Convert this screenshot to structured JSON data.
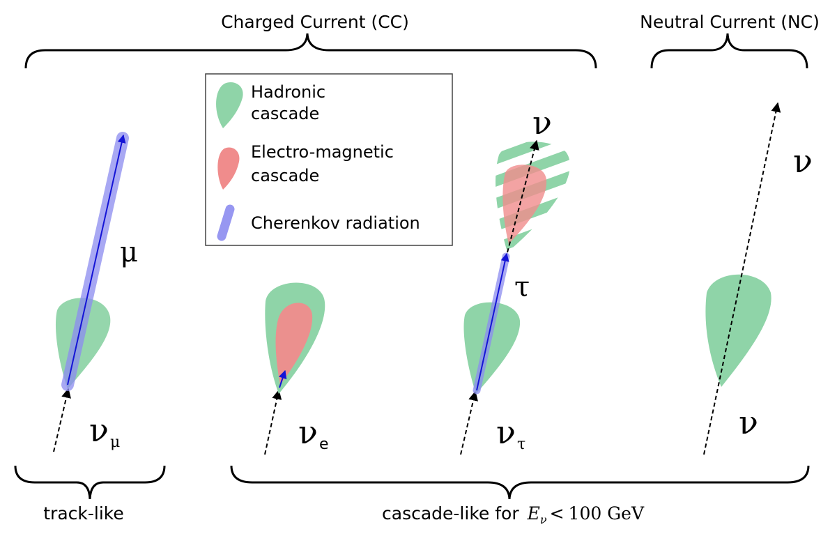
{
  "headers": {
    "cc": "Charged Current (CC)",
    "nc": "Neutral Current (NC)"
  },
  "legend": {
    "hadronic_line1": "Hadronic",
    "hadronic_line2": "cascade",
    "em_line1": "Electro-magnetic",
    "em_line2": "cascade",
    "cherenkov": "Cherenkov radiation"
  },
  "particles": {
    "nu_mu_base": "ν",
    "nu_mu_sub": "μ",
    "mu": "μ",
    "nu_e_base": "ν",
    "nu_e_sub": "e",
    "nu_tau_base": "ν",
    "nu_tau_sub": "τ",
    "tau": "τ",
    "nu_tau_out": "ν",
    "nc_nu_in": "ν",
    "nc_nu_out": "ν"
  },
  "bottom": {
    "track": "track-like",
    "cascade_prefix": "cascade-like for",
    "cascade_E": "E",
    "cascade_nu_sub": "ν",
    "cascade_lt": "<",
    "cascade_value": "100 GeV"
  },
  "colors": {
    "hadronic": "#8fd4a8",
    "em": "#f08c8c",
    "cherenkov": "#8c8cf0",
    "track_arrow": "#1414d6",
    "legend_border": "#444444"
  }
}
